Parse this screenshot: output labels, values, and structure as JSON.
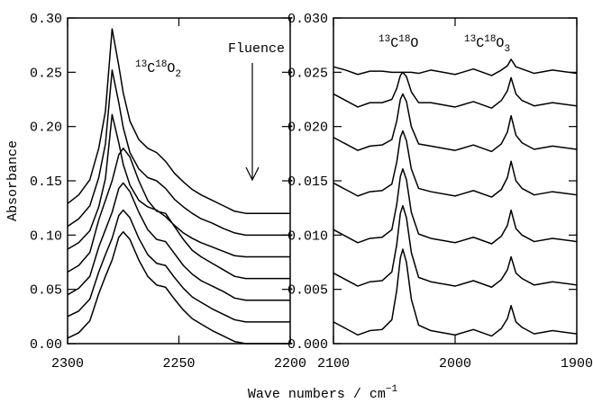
{
  "chart_data": [
    {
      "type": "line",
      "ylabel": "Absorbance",
      "xlabel": [
        "Wave numbers / cm",
        "−1"
      ],
      "annotations": [
        {
          "parts": [
            "13",
            "C",
            "18",
            "O",
            "2"
          ]
        },
        {
          "text": "Fluence"
        }
      ],
      "xlim": [
        2300,
        2200
      ],
      "xticks": [
        2300,
        2250,
        2200
      ],
      "ylim": [
        0,
        0.3
      ],
      "yticks": [
        {
          "value": 0,
          "label": "0.00"
        },
        {
          "value": 0.05,
          "label": "0.05"
        },
        {
          "value": 0.1,
          "label": "0.10"
        },
        {
          "value": 0.15,
          "label": "0.15"
        },
        {
          "value": 0.2,
          "label": "0.20"
        },
        {
          "value": 0.25,
          "label": "0.25"
        },
        {
          "value": 0.3,
          "label": "0.30"
        }
      ],
      "x": [
        2300,
        2295,
        2290,
        2286,
        2283,
        2280,
        2277,
        2275,
        2272,
        2268,
        2264,
        2260,
        2256,
        2252,
        2248,
        2244,
        2240,
        2235,
        2230,
        2225,
        2220,
        2210,
        2200
      ],
      "series": [
        {
          "color": "#000000",
          "values": [
            0.005,
            0.01,
            0.021,
            0.046,
            0.062,
            0.077,
            0.098,
            0.103,
            0.096,
            0.077,
            0.062,
            0.054,
            0.052,
            0.041,
            0.031,
            0.023,
            0.018,
            0.012,
            0.007,
            0.002,
            0,
            0,
            0
          ]
        },
        {
          "color": "#000000",
          "values": [
            0.025,
            0.03,
            0.041,
            0.066,
            0.082,
            0.097,
            0.118,
            0.123,
            0.116,
            0.097,
            0.082,
            0.074,
            0.072,
            0.061,
            0.051,
            0.043,
            0.038,
            0.032,
            0.027,
            0.022,
            0.02,
            0.02,
            0.02
          ]
        },
        {
          "color": "#000000",
          "values": [
            0.045,
            0.051,
            0.062,
            0.089,
            0.105,
            0.121,
            0.143,
            0.148,
            0.14,
            0.121,
            0.105,
            0.096,
            0.094,
            0.083,
            0.072,
            0.064,
            0.058,
            0.053,
            0.048,
            0.042,
            0.04,
            0.04,
            0.04
          ]
        },
        {
          "color": "#000000",
          "values": [
            0.066,
            0.072,
            0.084,
            0.114,
            0.132,
            0.15,
            0.174,
            0.18,
            0.172,
            0.15,
            0.132,
            0.122,
            0.12,
            0.108,
            0.096,
            0.086,
            0.08,
            0.074,
            0.068,
            0.062,
            0.06,
            0.06,
            0.06
          ]
        },
        {
          "color": "#000000",
          "values": [
            0.087,
            0.093,
            0.104,
            0.126,
            0.152,
            0.211,
            0.185,
            0.165,
            0.146,
            0.132,
            0.126,
            0.123,
            0.117,
            0.109,
            0.102,
            0.097,
            0.093,
            0.089,
            0.085,
            0.081,
            0.08,
            0.08,
            0.08
          ]
        },
        {
          "color": "#000000",
          "values": [
            0.108,
            0.115,
            0.127,
            0.153,
            0.184,
            0.252,
            0.222,
            0.199,
            0.176,
            0.161,
            0.153,
            0.15,
            0.143,
            0.133,
            0.126,
            0.12,
            0.115,
            0.111,
            0.106,
            0.102,
            0.1,
            0.1,
            0.1
          ]
        },
        {
          "color": "#000000",
          "values": [
            0.129,
            0.137,
            0.151,
            0.18,
            0.214,
            0.29,
            0.256,
            0.231,
            0.205,
            0.188,
            0.18,
            0.176,
            0.168,
            0.157,
            0.149,
            0.142,
            0.137,
            0.132,
            0.127,
            0.122,
            0.12,
            0.12,
            0.12
          ]
        }
      ]
    },
    {
      "type": "line",
      "annotations": [
        {
          "parts": [
            "13",
            "C",
            "18",
            "O"
          ]
        },
        {
          "parts": [
            "13",
            "C",
            "18",
            "O",
            "3"
          ]
        }
      ],
      "xlim": [
        2100,
        1900
      ],
      "xticks": [
        2100,
        2000,
        1900
      ],
      "ylim": [
        0,
        0.03
      ],
      "yticks": [
        {
          "value": 0,
          "label": "0.000"
        },
        {
          "value": 0.005,
          "label": "0.005"
        },
        {
          "value": 0.01,
          "label": "0.010"
        },
        {
          "value": 0.015,
          "label": "0.015"
        },
        {
          "value": 0.02,
          "label": "0.020"
        },
        {
          "value": 0.025,
          "label": "0.025"
        },
        {
          "value": 0.03,
          "label": "0.030"
        }
      ],
      "x": [
        2100,
        2090,
        2080,
        2070,
        2060,
        2052,
        2048,
        2045,
        2043,
        2040,
        2036,
        2030,
        2020,
        2000,
        1985,
        1970,
        1962,
        1957,
        1954,
        1950,
        1945,
        1935,
        1920,
        1900
      ],
      "series": [
        {
          "color": "#000000",
          "values": [
            0.002,
            0.0014,
            0.0008,
            0.0012,
            0.0013,
            0.0022,
            0.0049,
            0.0079,
            0.0087,
            0.0075,
            0.0041,
            0.0017,
            0.0012,
            0.0008,
            0.0013,
            0.0007,
            0.0014,
            0.0023,
            0.0035,
            0.002,
            0.0015,
            0.0009,
            0.0012,
            0.0009
          ]
        },
        {
          "color": "#000000",
          "values": [
            0.0065,
            0.0059,
            0.0053,
            0.0057,
            0.0058,
            0.0066,
            0.0091,
            0.012,
            0.0127,
            0.0116,
            0.0084,
            0.0061,
            0.0057,
            0.0053,
            0.0058,
            0.0052,
            0.0059,
            0.0068,
            0.008,
            0.0065,
            0.006,
            0.0054,
            0.0057,
            0.0054
          ]
        },
        {
          "color": "#000000",
          "values": [
            0.0105,
            0.0099,
            0.0093,
            0.0097,
            0.0098,
            0.0105,
            0.0128,
            0.0154,
            0.0161,
            0.0151,
            0.0121,
            0.0101,
            0.0097,
            0.0093,
            0.0098,
            0.0092,
            0.0099,
            0.0109,
            0.0123,
            0.0106,
            0.01,
            0.0094,
            0.0097,
            0.0094
          ]
        },
        {
          "color": "#000000",
          "values": [
            0.0148,
            0.0142,
            0.0136,
            0.014,
            0.0141,
            0.0147,
            0.0167,
            0.019,
            0.0196,
            0.0187,
            0.0161,
            0.0143,
            0.014,
            0.0136,
            0.0141,
            0.0135,
            0.0142,
            0.0153,
            0.0168,
            0.015,
            0.0143,
            0.0137,
            0.014,
            0.0137
          ]
        },
        {
          "color": "#000000",
          "values": [
            0.019,
            0.0184,
            0.0178,
            0.0182,
            0.0183,
            0.0188,
            0.0205,
            0.0225,
            0.023,
            0.0223,
            0.02,
            0.0184,
            0.0182,
            0.0178,
            0.0183,
            0.0177,
            0.0184,
            0.0195,
            0.021,
            0.0192,
            0.0185,
            0.0179,
            0.0182,
            0.0179
          ]
        },
        {
          "color": "#000000",
          "values": [
            0.023,
            0.0224,
            0.0218,
            0.0222,
            0.0222,
            0.0225,
            0.0235,
            0.0247,
            0.025,
            0.0246,
            0.0232,
            0.0222,
            0.0222,
            0.0218,
            0.0223,
            0.0217,
            0.0224,
            0.0233,
            0.0245,
            0.023,
            0.0224,
            0.0219,
            0.0222,
            0.0219
          ]
        },
        {
          "color": "#000000",
          "values": [
            0.0255,
            0.0252,
            0.0248,
            0.0251,
            0.0251,
            0.025,
            0.025,
            0.025,
            0.025,
            0.025,
            0.025,
            0.0249,
            0.0252,
            0.0248,
            0.0253,
            0.0247,
            0.0252,
            0.0256,
            0.0262,
            0.0255,
            0.0253,
            0.0249,
            0.0252,
            0.0249
          ]
        }
      ]
    }
  ]
}
